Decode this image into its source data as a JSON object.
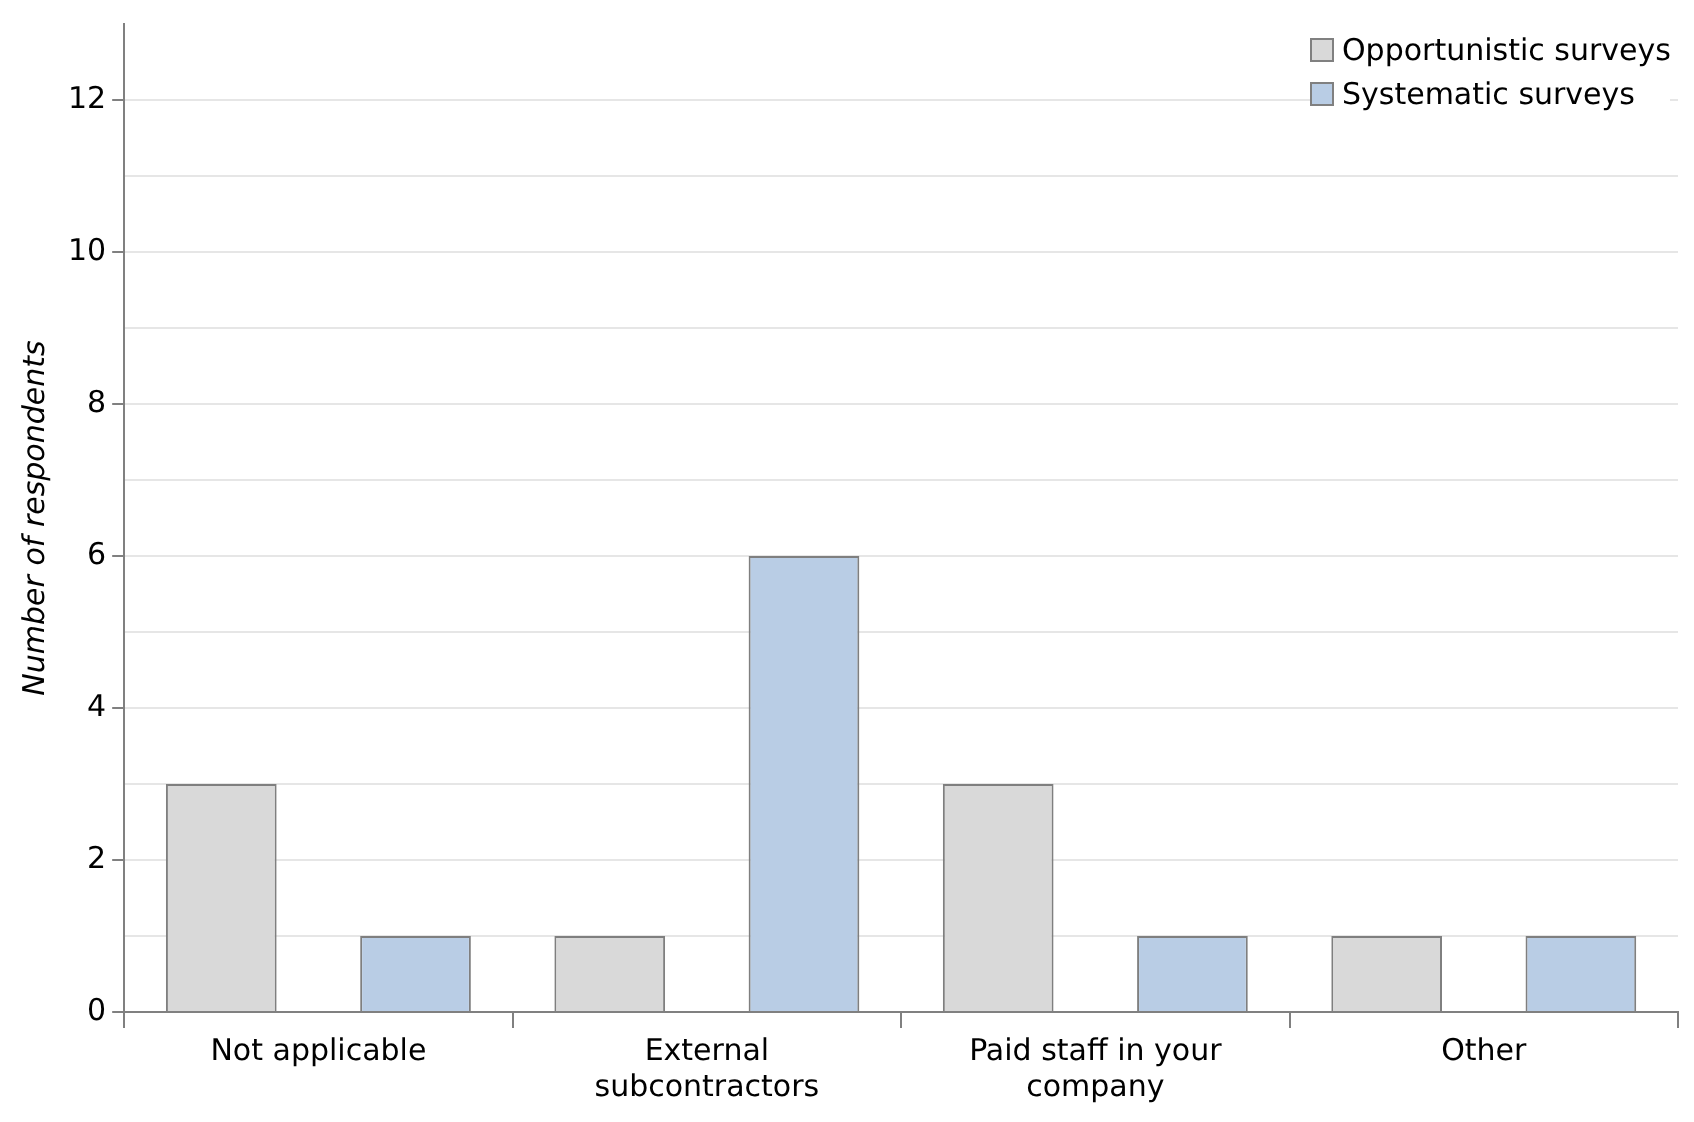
{
  "chart_data": {
    "type": "bar",
    "ylabel": "Number of respondents",
    "categories": [
      "Not applicable",
      "External subcontractors",
      "Paid staff in your company",
      "Other"
    ],
    "series": [
      {
        "name": "Opportunistic surveys",
        "color": "#d9d9d9",
        "values": [
          3,
          1,
          3,
          1
        ]
      },
      {
        "name": "Systematic surveys",
        "color": "#b9cde5",
        "values": [
          1,
          6,
          1,
          1
        ]
      }
    ],
    "ylim": [
      0,
      13
    ],
    "yticks": [
      0,
      {
        "value": 1,
        "label": null
      },
      2,
      {
        "value": 3,
        "label": null
      },
      4,
      {
        "value": 5,
        "label": null
      },
      6,
      {
        "value": 7,
        "label": null
      },
      8,
      {
        "value": 9,
        "label": null
      },
      10,
      {
        "value": 11,
        "label": null
      },
      12
    ],
    "grid": "y",
    "legend": "top right"
  }
}
